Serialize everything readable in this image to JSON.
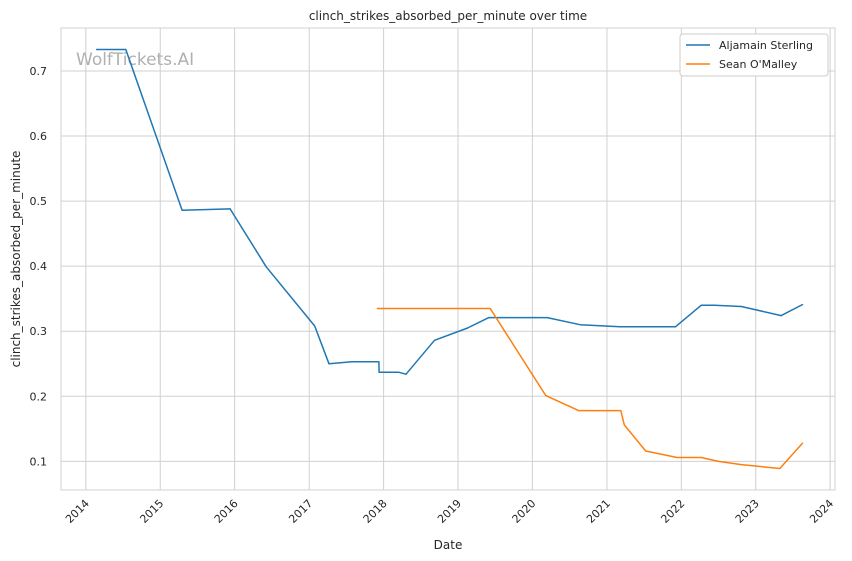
{
  "chart_data": {
    "type": "line",
    "title": "clinch_strikes_absorbed_per_minute over time",
    "xlabel": "Date",
    "ylabel": "clinch_strikes_absorbed_per_minute",
    "watermark": "WolfTickets.AI",
    "x_ticks": [
      "2014",
      "2015",
      "2016",
      "2017",
      "2018",
      "2019",
      "2020",
      "2021",
      "2022",
      "2023",
      "2024"
    ],
    "y_ticks": [
      "0.1",
      "0.2",
      "0.3",
      "0.4",
      "0.5",
      "0.6",
      "0.7"
    ],
    "xlim": [
      "2013-09-01",
      "2024-01-25"
    ],
    "ylim": [
      0.056,
      0.766
    ],
    "grid": true,
    "legend_position": "top-right",
    "series": [
      {
        "name": "Aljamain Sterling",
        "color": "#1f77b4",
        "points": [
          [
            "2014-02-22",
            0.733
          ],
          [
            "2014-07-16",
            0.733
          ],
          [
            "2015-04-18",
            0.486
          ],
          [
            "2015-12-10",
            0.488
          ],
          [
            "2016-06-04",
            0.399
          ],
          [
            "2017-01-28",
            0.308
          ],
          [
            "2017-04-08",
            0.25
          ],
          [
            "2017-07-29",
            0.253
          ],
          [
            "2017-12-09",
            0.253
          ],
          [
            "2017-12-10",
            0.237
          ],
          [
            "2018-03-15",
            0.237
          ],
          [
            "2018-04-21",
            0.234
          ],
          [
            "2018-09-08",
            0.286
          ],
          [
            "2019-02-17",
            0.305
          ],
          [
            "2019-06-01",
            0.321
          ],
          [
            "2020-03-14",
            0.321
          ],
          [
            "2020-08-22",
            0.31
          ],
          [
            "2021-03-06",
            0.307
          ],
          [
            "2021-12-04",
            0.307
          ],
          [
            "2022-04-09",
            0.34
          ],
          [
            "2022-06-12",
            0.34
          ],
          [
            "2022-10-22",
            0.338
          ],
          [
            "2023-05-06",
            0.324
          ],
          [
            "2023-08-19",
            0.341
          ]
        ]
      },
      {
        "name": "Sean O'Malley",
        "color": "#ff7f0e",
        "points": [
          [
            "2017-12-01",
            0.335
          ],
          [
            "2019-06-08",
            0.335
          ],
          [
            "2020-03-07",
            0.201
          ],
          [
            "2020-08-15",
            0.178
          ],
          [
            "2021-03-10",
            0.178
          ],
          [
            "2021-03-27",
            0.156
          ],
          [
            "2021-07-10",
            0.116
          ],
          [
            "2021-12-11",
            0.106
          ],
          [
            "2022-04-09",
            0.106
          ],
          [
            "2022-07-02",
            0.1
          ],
          [
            "2022-10-22",
            0.095
          ],
          [
            "2023-04-29",
            0.089
          ],
          [
            "2023-08-19",
            0.128
          ]
        ]
      }
    ]
  }
}
